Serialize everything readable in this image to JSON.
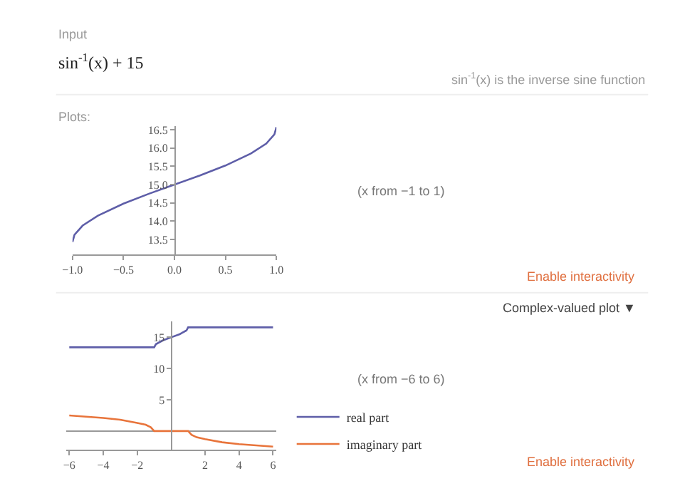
{
  "chart_data": [
    {
      "type": "line",
      "annotations": [
        "Input",
        "sin$^{-1}$(x) + 15",
        "sin$^{-1}$(x) is the inverse sine function",
        "Plots:",
        "(x from −1 to 1)",
        "Enable interactivity"
      ],
      "x": [
        -1,
        -0.98,
        -0.9,
        -0.75,
        -0.5,
        -0.25,
        0,
        0.25,
        0.5,
        0.75,
        0.9,
        0.98,
        1
      ],
      "series": [
        {
          "color": "#5e5ea8",
          "values": [
            13.43,
            13.63,
            13.88,
            14.15,
            14.48,
            14.75,
            15.0,
            15.25,
            15.52,
            15.85,
            16.12,
            16.37,
            16.57
          ]
        }
      ],
      "xlim": [
        -1,
        1
      ],
      "ylim": [
        13.1,
        16.6
      ],
      "xticks": [
        {
          "value": -1,
          "label": "−1.0"
        },
        {
          "value": -0.5,
          "label": "−0.5"
        },
        {
          "value": 0,
          "label": "0.0"
        },
        0.5,
        {
          "value": 1,
          "label": "1.0"
        }
      ],
      "yticks": [
        13.5,
        {
          "value": 14,
          "label": "14.0"
        },
        14.5,
        {
          "value": 15,
          "label": "15.0"
        },
        15.5,
        {
          "value": 16,
          "label": "16.0"
        },
        16.5
      ],
      "legend": false
    },
    {
      "type": "line",
      "annotations": [
        "Complex-valued plot ▼",
        "(x from −6 to 6)",
        "Enable interactivity"
      ],
      "series": [
        {
          "name": "real part",
          "color": "#5e5ea8",
          "x": [
            -6,
            -1,
            -0.9,
            -0.5,
            0,
            0.5,
            0.9,
            1,
            6
          ],
          "values": [
            13.4,
            13.4,
            13.9,
            14.5,
            15.0,
            15.5,
            16.1,
            16.6,
            16.6
          ]
        },
        {
          "name": "imaginary part",
          "color": "#e8743b",
          "x": [
            -6,
            -5,
            -4,
            -3,
            -2,
            -1.5,
            -1.2,
            -1,
            1,
            1.2,
            1.5,
            2,
            3,
            4,
            5,
            6
          ],
          "values": [
            2.5,
            2.3,
            2.1,
            1.8,
            1.3,
            1.0,
            0.6,
            0,
            0,
            -0.6,
            -1.0,
            -1.3,
            -1.8,
            -2.1,
            -2.3,
            -2.5
          ]
        }
      ],
      "xlim": [
        -6.2,
        6.2
      ],
      "ylim": [
        -3,
        17.5
      ],
      "xticks": [
        {
          "value": -6,
          "label": "−6"
        },
        {
          "value": -4,
          "label": "−4"
        },
        {
          "value": -2,
          "label": "−2"
        },
        2,
        4,
        6
      ],
      "yticks": [
        5,
        10,
        15
      ],
      "legend": "right"
    }
  ]
}
